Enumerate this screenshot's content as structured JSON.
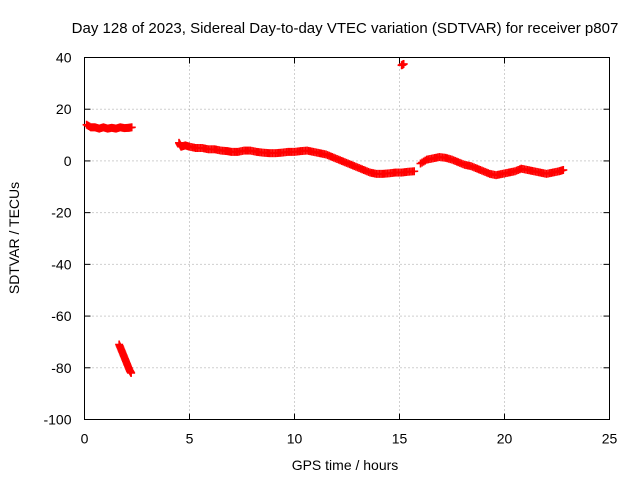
{
  "chart_data": {
    "type": "scatter",
    "title": "Day 128 of 2023, Sidereal Day-to-day VTEC variation (SDTVAR) for receiver p807",
    "xlabel": "GPS time / hours",
    "ylabel": "SDTVAR / TECUs",
    "xlim": [
      0,
      25
    ],
    "ylim": [
      -100,
      40
    ],
    "xticks": [
      0,
      5,
      10,
      15,
      20,
      25
    ],
    "yticks": [
      40,
      20,
      0,
      -20,
      -40,
      -60,
      -80,
      -100
    ],
    "grid": true,
    "marker": "plus",
    "color": "#ff0000",
    "series": [
      {
        "name": "SDTVAR",
        "x": [
          0.1,
          0.3,
          0.5,
          0.7,
          0.9,
          1.1,
          1.3,
          1.5,
          1.7,
          1.9,
          2.1,
          2.25,
          1.65,
          1.75,
          1.85,
          1.95,
          2.05,
          2.15,
          2.22,
          4.5,
          4.6,
          4.8,
          5.0,
          5.3,
          5.6,
          5.9,
          6.2,
          6.5,
          6.8,
          7.0,
          7.3,
          7.6,
          7.9,
          8.2,
          8.5,
          8.8,
          9.1,
          9.4,
          9.7,
          10.0,
          10.3,
          10.6,
          10.9,
          11.2,
          11.5,
          11.8,
          12.1,
          12.4,
          12.7,
          13.0,
          13.3,
          13.6,
          13.9,
          14.2,
          14.5,
          14.8,
          15.1,
          15.4,
          15.7,
          15.1,
          15.2,
          16.0,
          16.3,
          16.6,
          16.9,
          17.2,
          17.5,
          17.8,
          18.1,
          18.4,
          18.7,
          19.0,
          19.3,
          19.6,
          19.9,
          20.2,
          20.5,
          20.8,
          21.1,
          21.4,
          21.7,
          22.0,
          22.3,
          22.6,
          22.8
        ],
        "y": [
          14,
          13,
          13,
          12.5,
          13,
          12.5,
          12.8,
          12.5,
          13,
          12.7,
          12.8,
          13,
          -71,
          -73,
          -75,
          -77,
          -79,
          -81,
          -82,
          7,
          5.5,
          6,
          5.5,
          5,
          5,
          4.5,
          4.5,
          4,
          3.8,
          3.5,
          3.5,
          4,
          4,
          3.5,
          3.2,
          3,
          3,
          3.2,
          3.5,
          3.5,
          3.8,
          4,
          3.5,
          3,
          2.5,
          1.5,
          0.5,
          -0.5,
          -1.5,
          -2.5,
          -3.5,
          -4.5,
          -5,
          -5,
          -4.8,
          -4.5,
          -4.5,
          -4.2,
          -4,
          37,
          37.5,
          -1,
          0.5,
          1,
          1.5,
          1.2,
          0.5,
          -0.5,
          -1.5,
          -2,
          -3,
          -4,
          -5,
          -5.5,
          -5,
          -4.5,
          -4,
          -3,
          -3.5,
          -4,
          -4.5,
          -5,
          -4.5,
          -4,
          -3.5
        ]
      }
    ]
  }
}
